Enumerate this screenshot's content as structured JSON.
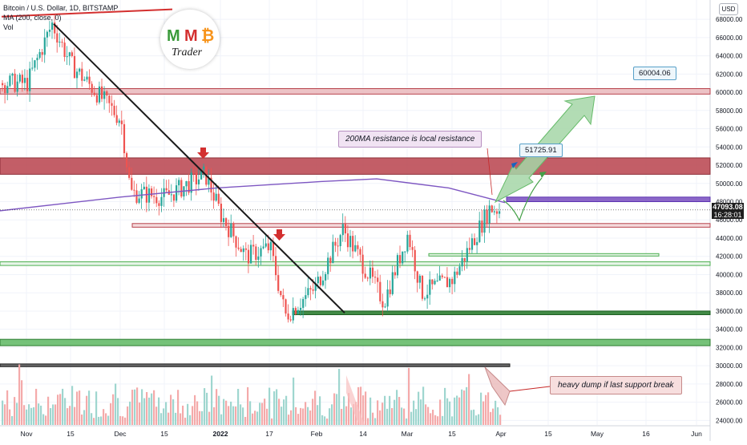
{
  "legend": {
    "symbol": "Bitcoin / U.S. Dollar, 1D, BITSTAMP",
    "ma": "MA (200, close, 0)",
    "vol": "Vol"
  },
  "logo": {
    "m1": "M",
    "m2": "M",
    "btc": "₿",
    "trader": "Trader"
  },
  "axis": {
    "currency": "USD"
  },
  "last_price": {
    "value": "47093.08",
    "countdown": "16:28:01"
  },
  "annotations": {
    "resistance_note": "200MA resistance is local resistance",
    "target_high": "60004.06",
    "target_mid": "51725.91",
    "dump_note": "heavy dump if last support break"
  },
  "colors": {
    "up": "#26a69a",
    "down": "#ef5350",
    "ma200": "#7e57c2",
    "zone_red": "#b8424c",
    "zone_green": "#4caf50",
    "zone_dark": "#3a3a3a",
    "trendline": "#1a1a1a",
    "arrow_green": "#8fd19e"
  },
  "chart_data": {
    "type": "candlestick",
    "title": "Bitcoin / U.S. Dollar, 1D, BITSTAMP",
    "ylabel": "USD",
    "ylim": [
      24000,
      69000
    ],
    "y_ticks": [
      24000,
      26000,
      28000,
      30000,
      32000,
      34000,
      36000,
      38000,
      40000,
      42000,
      44000,
      46000,
      48000,
      50000,
      52000,
      54000,
      56000,
      58000,
      60000,
      62000,
      64000,
      66000,
      68000
    ],
    "x_ticks": [
      "Nov",
      "15",
      "Dec",
      "15",
      "2022",
      "17",
      "Feb",
      "14",
      "Mar",
      "15",
      "Apr",
      "15",
      "May",
      "16",
      "Jun"
    ],
    "anchor_closes": [
      {
        "date": "Nov",
        "close": 61000
      },
      {
        "date": "Nov 10",
        "close": 67500
      },
      {
        "date": "Nov 15",
        "close": 63000
      },
      {
        "date": "Dec",
        "close": 57000
      },
      {
        "date": "Dec 4",
        "close": 49000
      },
      {
        "date": "Dec 15",
        "close": 48500
      },
      {
        "date": "Dec 27",
        "close": 51000
      },
      {
        "date": "2022",
        "close": 46500
      },
      {
        "date": "Jan 10",
        "close": 42000
      },
      {
        "date": "Jan 17",
        "close": 43000
      },
      {
        "date": "Jan 22",
        "close": 35500
      },
      {
        "date": "Jan 31",
        "close": 38500
      },
      {
        "date": "Feb 9",
        "close": 45000
      },
      {
        "date": "Feb 24",
        "close": 37000
      },
      {
        "date": "Mar 2",
        "close": 44500
      },
      {
        "date": "Mar 7",
        "close": 38000
      },
      {
        "date": "Mar 15",
        "close": 39500
      },
      {
        "date": "Mar 28",
        "close": 47300
      },
      {
        "date": "Apr",
        "close": 47093
      }
    ],
    "series": [
      {
        "name": "MA (200, close, 0)",
        "points": [
          [
            0,
            47000
          ],
          [
            150,
            48500
          ],
          [
            270,
            49500
          ],
          [
            400,
            50200
          ],
          [
            470,
            50500
          ],
          [
            560,
            49500
          ],
          [
            630,
            47900
          ]
        ]
      }
    ],
    "last_price": 47093.08,
    "levels": {
      "resistance_zone": [
        51000,
        52800
      ],
      "ma_zone": [
        48000,
        48500
      ],
      "support_thin_1": [
        45200,
        45600
      ],
      "support_thin_2": [
        41000,
        41400
      ],
      "support_zone_1": [
        35600,
        36000
      ],
      "support_zone_2": [
        32200,
        32900
      ],
      "dump_line": [
        29900,
        30200
      ],
      "red_zone_top": [
        59800,
        60400
      ]
    },
    "targets": [
      51725.91,
      60004.06
    ],
    "volume": "shown as bars along bottom (colored up/down)"
  }
}
